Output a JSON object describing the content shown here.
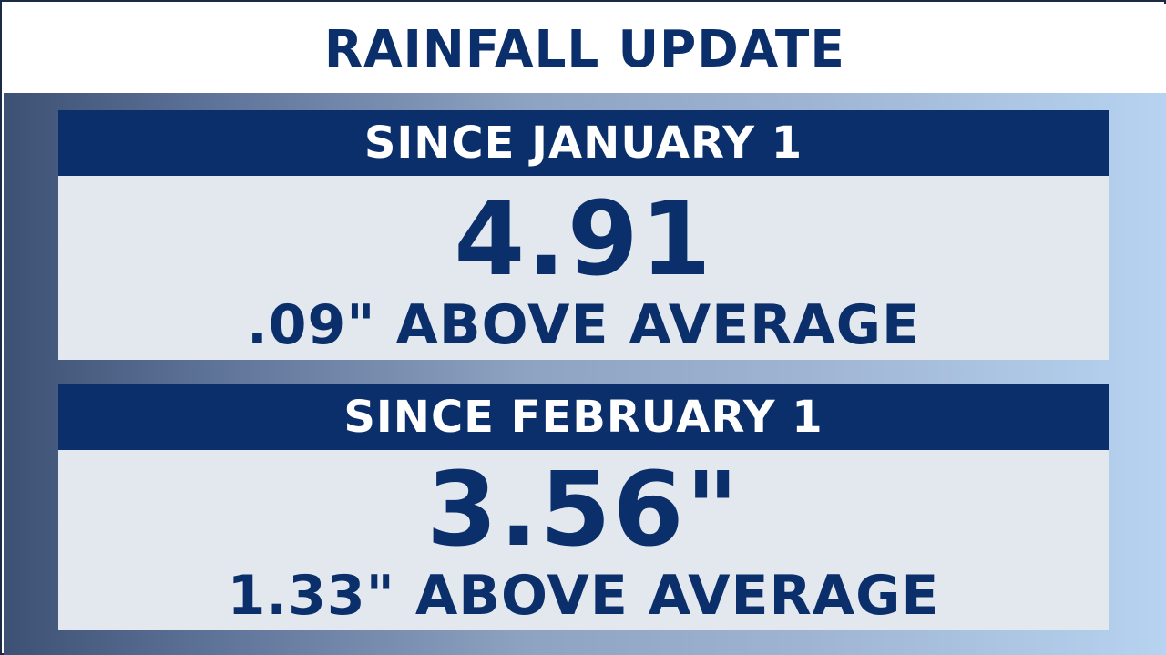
{
  "title": "RAINFALL UPDATE",
  "sections": [
    {
      "header": "SINCE JANUARY 1",
      "value": "4.91",
      "departure": ".09\" ABOVE AVERAGE"
    },
    {
      "header": "SINCE FEBRUARY 1",
      "value": "3.56\"",
      "departure": "1.33\" ABOVE AVERAGE"
    }
  ],
  "colors": {
    "navy": "#0a2f6b",
    "panel_light": "#e3e8ef",
    "gradient_left": "#3c5173",
    "gradient_right": "#b6d3f0"
  }
}
